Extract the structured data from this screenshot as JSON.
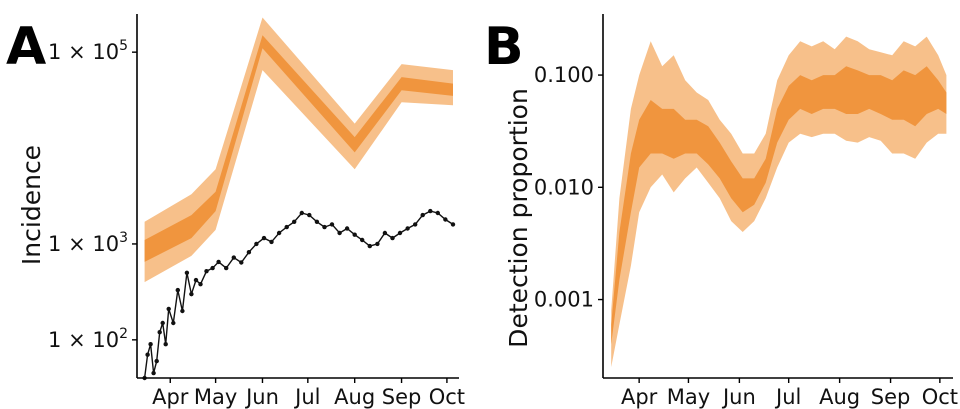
{
  "chart_data": [
    {
      "panel": "A",
      "type": "line",
      "xlabel": "",
      "ylabel": "Incidence",
      "yscale": "log",
      "ylim": [
        40,
        250000
      ],
      "x_ticks": [
        "Apr",
        "May",
        "Jun",
        "Jul",
        "Aug",
        "Sep",
        "Oct"
      ],
      "y_ticks": [
        {
          "value": 100,
          "label": "1 × 10"
        },
        {
          "value": 1000,
          "label": "1 × 10"
        },
        {
          "value": 100000,
          "label": "1 × 10"
        }
      ],
      "y_tick_exponents": [
        "2",
        "3",
        "5"
      ],
      "colors": {
        "band_outer": "#f7c08a",
        "band_inner": "#f0953e",
        "observed": "#111111"
      },
      "estimated_band": {
        "x": [
          "2020-03-15",
          "2020-04-15",
          "2020-05-01",
          "2020-06-01",
          "2020-08-01",
          "2020-09-01",
          "2020-10-05"
        ],
        "outer_low": [
          400,
          750,
          1400,
          65000,
          6000,
          30000,
          28000
        ],
        "outer_high": [
          1700,
          3300,
          6000,
          230000,
          18000,
          75000,
          65000
        ],
        "inner_low": [
          650,
          1150,
          2200,
          110000,
          9000,
          40000,
          35000
        ],
        "inner_high": [
          1100,
          2000,
          3500,
          150000,
          13000,
          55000,
          47000
        ]
      },
      "observed": {
        "x": [
          "2020-03-15",
          "2020-03-17",
          "2020-03-19",
          "2020-03-21",
          "2020-03-23",
          "2020-03-25",
          "2020-03-27",
          "2020-03-29",
          "2020-03-31",
          "2020-04-03",
          "2020-04-06",
          "2020-04-09",
          "2020-04-12",
          "2020-04-15",
          "2020-04-18",
          "2020-04-21",
          "2020-04-25",
          "2020-04-29",
          "2020-05-03",
          "2020-05-08",
          "2020-05-13",
          "2020-05-18",
          "2020-05-23",
          "2020-05-28",
          "2020-06-02",
          "2020-06-07",
          "2020-06-12",
          "2020-06-17",
          "2020-06-22",
          "2020-06-27",
          "2020-07-02",
          "2020-07-07",
          "2020-07-12",
          "2020-07-17",
          "2020-07-22",
          "2020-07-27",
          "2020-08-01",
          "2020-08-06",
          "2020-08-11",
          "2020-08-16",
          "2020-08-21",
          "2020-08-26",
          "2020-08-31",
          "2020-09-05",
          "2020-09-10",
          "2020-09-15",
          "2020-09-20",
          "2020-09-25",
          "2020-09-30",
          "2020-10-05"
        ],
        "y": [
          40,
          70,
          90,
          45,
          60,
          120,
          150,
          90,
          210,
          150,
          330,
          200,
          500,
          300,
          420,
          380,
          520,
          560,
          650,
          560,
          720,
          640,
          820,
          1000,
          1150,
          1050,
          1300,
          1500,
          1700,
          2100,
          2000,
          1700,
          1500,
          1600,
          1300,
          1450,
          1250,
          1100,
          950,
          1000,
          1300,
          1150,
          1300,
          1450,
          1600,
          2000,
          2200,
          2100,
          1800,
          1600
        ]
      }
    },
    {
      "panel": "B",
      "type": "area",
      "xlabel": "",
      "ylabel": "Detection proportion",
      "yscale": "log",
      "ylim": [
        0.0002,
        0.35
      ],
      "x_ticks": [
        "Apr",
        "May",
        "Jun",
        "Jul",
        "Aug",
        "Sep",
        "Oct"
      ],
      "y_ticks": [
        {
          "value": 0.001,
          "label": "0.001"
        },
        {
          "value": 0.01,
          "label": "0.010"
        },
        {
          "value": 0.1,
          "label": "0.100"
        }
      ],
      "colors": {
        "band_outer": "#f7c08a",
        "band_inner": "#f0953e"
      },
      "band": {
        "x": [
          "2020-03-15",
          "2020-03-20",
          "2020-03-27",
          "2020-04-01",
          "2020-04-08",
          "2020-04-15",
          "2020-04-22",
          "2020-04-29",
          "2020-05-06",
          "2020-05-13",
          "2020-05-20",
          "2020-05-27",
          "2020-06-03",
          "2020-06-10",
          "2020-06-17",
          "2020-06-24",
          "2020-07-01",
          "2020-07-08",
          "2020-07-15",
          "2020-07-22",
          "2020-07-29",
          "2020-08-05",
          "2020-08-12",
          "2020-08-19",
          "2020-08-26",
          "2020-09-02",
          "2020-09-09",
          "2020-09-16",
          "2020-09-23",
          "2020-09-30",
          "2020-10-05"
        ],
        "outer_low": [
          0.00025,
          0.0006,
          0.002,
          0.006,
          0.01,
          0.013,
          0.009,
          0.012,
          0.015,
          0.011,
          0.008,
          0.005,
          0.004,
          0.005,
          0.008,
          0.015,
          0.025,
          0.03,
          0.028,
          0.03,
          0.03,
          0.026,
          0.025,
          0.028,
          0.026,
          0.02,
          0.02,
          0.018,
          0.025,
          0.03,
          0.03
        ],
        "outer_high": [
          0.0008,
          0.008,
          0.05,
          0.1,
          0.2,
          0.12,
          0.15,
          0.09,
          0.07,
          0.06,
          0.04,
          0.03,
          0.02,
          0.02,
          0.03,
          0.09,
          0.15,
          0.2,
          0.18,
          0.2,
          0.17,
          0.22,
          0.2,
          0.17,
          0.16,
          0.15,
          0.2,
          0.18,
          0.22,
          0.15,
          0.1
        ],
        "inner_low": [
          0.0004,
          0.0015,
          0.006,
          0.015,
          0.02,
          0.02,
          0.018,
          0.02,
          0.02,
          0.016,
          0.012,
          0.008,
          0.006,
          0.007,
          0.011,
          0.025,
          0.04,
          0.05,
          0.045,
          0.05,
          0.05,
          0.045,
          0.045,
          0.05,
          0.045,
          0.04,
          0.04,
          0.035,
          0.045,
          0.05,
          0.045
        ],
        "inner_high": [
          0.0006,
          0.004,
          0.02,
          0.04,
          0.06,
          0.05,
          0.05,
          0.04,
          0.04,
          0.035,
          0.025,
          0.017,
          0.012,
          0.012,
          0.018,
          0.05,
          0.08,
          0.1,
          0.09,
          0.1,
          0.1,
          0.12,
          0.11,
          0.1,
          0.1,
          0.09,
          0.11,
          0.1,
          0.12,
          0.09,
          0.07
        ]
      }
    }
  ],
  "panel_labels": [
    "A",
    "B"
  ]
}
